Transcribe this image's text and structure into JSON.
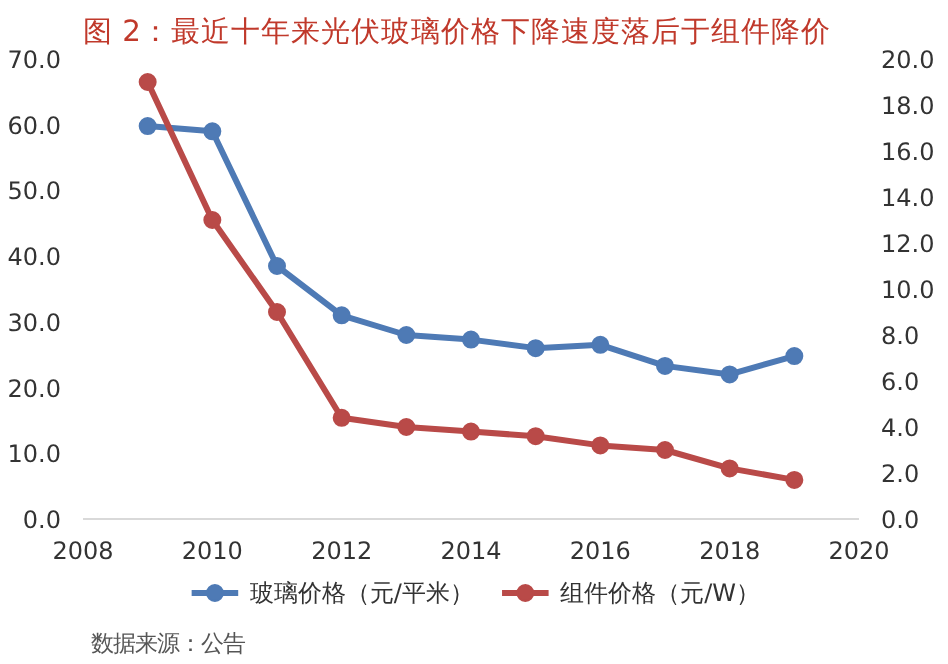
{
  "chart_data": {
    "type": "line",
    "title": "图 2：最近十年来光伏玻璃价格下降速度落后于组件降价",
    "annotations": [
      "数据来源：公告"
    ],
    "x": [
      2009,
      2010,
      2011,
      2012,
      2013,
      2014,
      2015,
      2016,
      2017,
      2018,
      2019
    ],
    "series": [
      {
        "name": "玻璃价格（元/平米）",
        "color": "#4e7ab5",
        "values": [
          59.8,
          59.0,
          38.5,
          31.0,
          28.0,
          27.3,
          26.0,
          26.5,
          23.3,
          22.0,
          24.8
        ]
      },
      {
        "name": "组件价格（元/W）",
        "color": "#b94a48",
        "axis": "y2",
        "values": [
          19.0,
          13.0,
          9.0,
          4.4,
          4.0,
          3.8,
          3.6,
          3.2,
          3.0,
          2.2,
          1.7
        ]
      }
    ],
    "xlim": [
      2008,
      2020
    ],
    "xticks": [
      2008,
      2010,
      2012,
      2014,
      2016,
      2018,
      2020
    ],
    "ylim": [
      0,
      70
    ],
    "yticks": [
      {
        "value": 0,
        "label": "0.0"
      },
      {
        "value": 10,
        "label": "10.0"
      },
      {
        "value": 20,
        "label": "20.0"
      },
      {
        "value": 30,
        "label": "30.0"
      },
      {
        "value": 40,
        "label": "40.0"
      },
      {
        "value": 50,
        "label": "50.0"
      },
      {
        "value": 60,
        "label": "60.0"
      },
      {
        "value": 70,
        "label": "70.0"
      }
    ],
    "y2lim": [
      0,
      20
    ],
    "y2ticks": [
      {
        "value": 0,
        "label": "0.0"
      },
      {
        "value": 2,
        "label": "2.0"
      },
      {
        "value": 4,
        "label": "4.0"
      },
      {
        "value": 6,
        "label": "6.0"
      },
      {
        "value": 8,
        "label": "8.0"
      },
      {
        "value": 10,
        "label": "10.0"
      },
      {
        "value": 12,
        "label": "12.0"
      },
      {
        "value": 14,
        "label": "14.0"
      },
      {
        "value": 16,
        "label": "16.0"
      },
      {
        "value": 18,
        "label": "18.0"
      },
      {
        "value": 20,
        "label": "20.0"
      }
    ],
    "grid": false,
    "legend": "bottom",
    "marker": "circle",
    "line_style": "solid"
  }
}
